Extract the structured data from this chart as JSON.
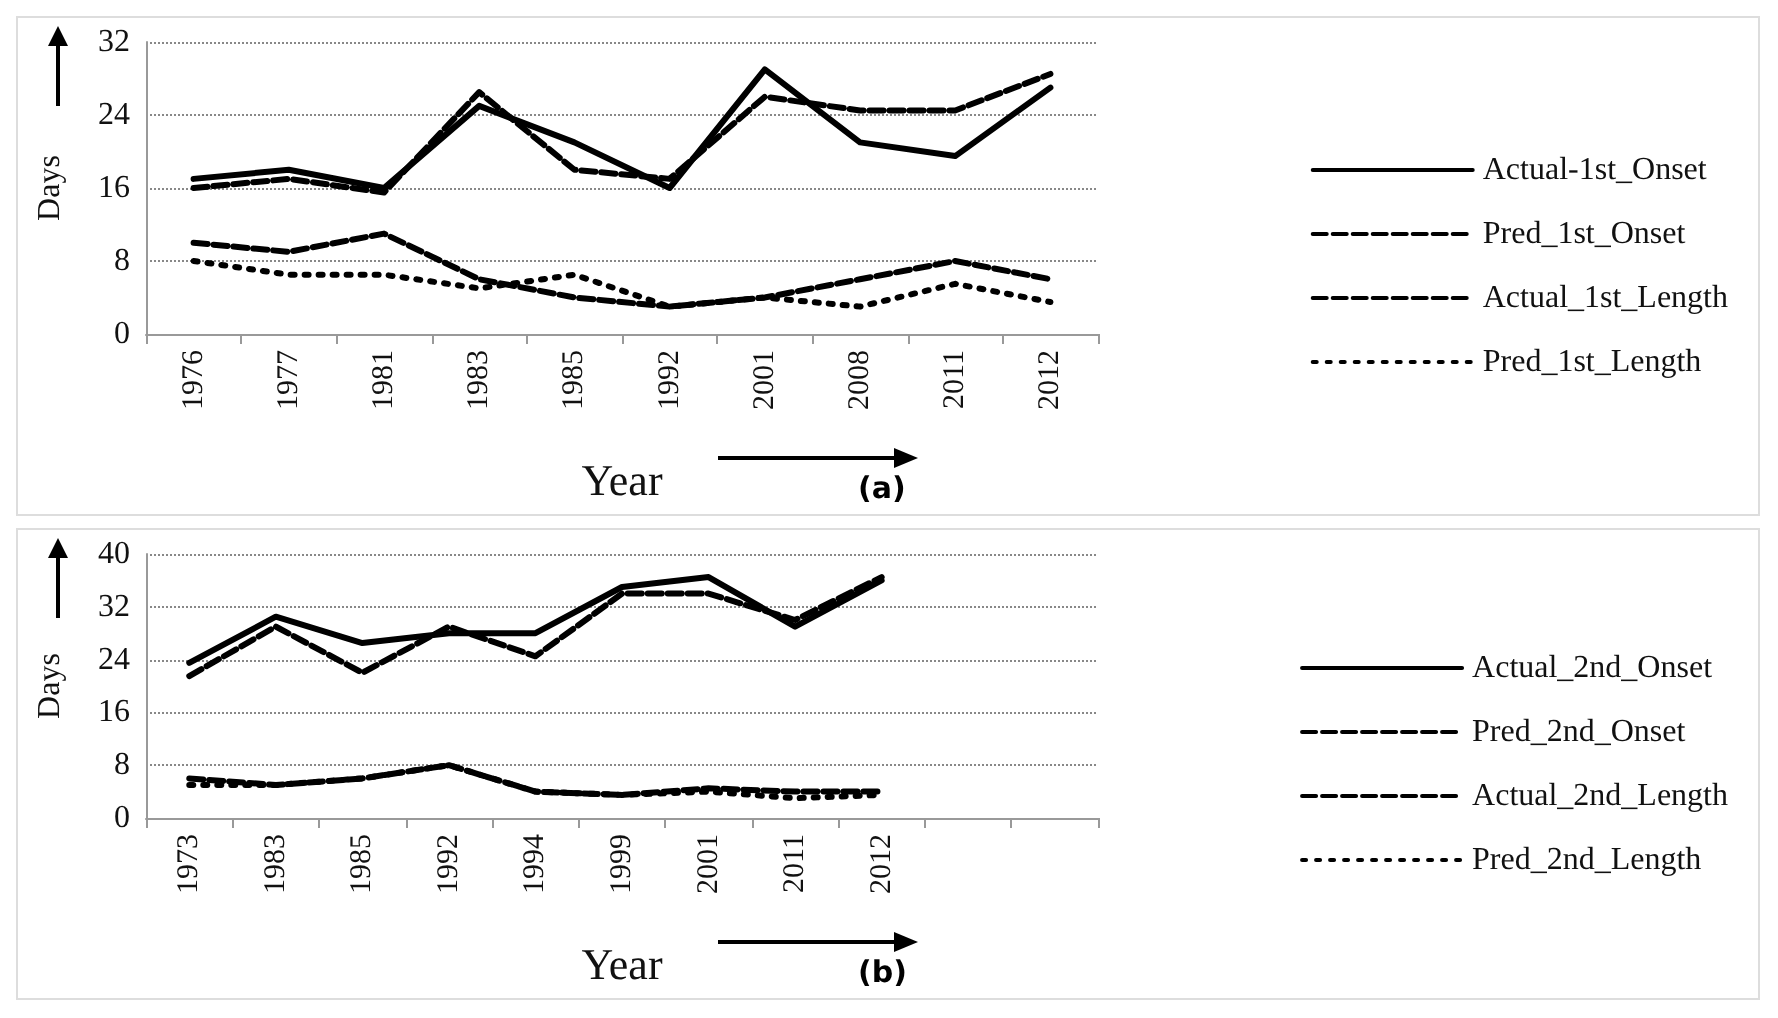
{
  "chart_data": [
    {
      "type": "line",
      "xlabel": "Year",
      "ylabel": "Days",
      "categories": [
        "1976",
        "1977",
        "1981",
        "1983",
        "1985",
        "1992",
        "2001",
        "2008",
        "2011",
        "2012"
      ],
      "ylim": [
        0,
        32
      ],
      "yticks": [
        0,
        8,
        16,
        24,
        32
      ],
      "grid": "y",
      "legend": "right",
      "marker": "none",
      "annotations": [
        "(a)"
      ],
      "series": [
        {
          "name": "Actual-1st_Onset",
          "color": "#000000",
          "line_style": "solid",
          "values": [
            17,
            18,
            16,
            25,
            21,
            16,
            29,
            21,
            19.5,
            27
          ]
        },
        {
          "name": "Pred_1st_Onset",
          "color": "#000000",
          "line_style": "dashed",
          "values": [
            16,
            17,
            15.5,
            26.5,
            18,
            17,
            26,
            24.5,
            24.5,
            28.5
          ]
        },
        {
          "name": "Actual_1st_Length",
          "color": "#000000",
          "line_style": "dashed",
          "values": [
            10,
            9,
            11,
            6,
            4,
            3,
            4,
            6,
            8,
            6
          ]
        },
        {
          "name": "Pred_1st_Length",
          "color": "#000000",
          "line_style": "dotted",
          "values": [
            8,
            6.5,
            6.5,
            5,
            6.5,
            3,
            4,
            3,
            5.5,
            3.5
          ]
        }
      ]
    },
    {
      "type": "line",
      "xlabel": "Year",
      "ylabel": "Days",
      "categories": [
        "1973",
        "1983",
        "1985",
        "1992",
        "1994",
        "1999",
        "2001",
        "2011",
        "2012",
        null,
        null
      ],
      "ylim": [
        0,
        40
      ],
      "yticks": [
        0,
        8,
        16,
        24,
        32,
        40
      ],
      "grid": "y",
      "legend": "right",
      "marker": "none",
      "annotations": [
        "(b)"
      ],
      "series": [
        {
          "name": "Actual_2nd_Onset",
          "color": "#000000",
          "line_style": "solid",
          "values": [
            23.5,
            30.5,
            26.5,
            28,
            28,
            35,
            36.5,
            29,
            36,
            null,
            null
          ]
        },
        {
          "name": "Pred_2nd_Onset",
          "color": "#000000",
          "line_style": "dashed",
          "values": [
            21.5,
            29,
            22,
            29,
            24.5,
            34,
            34,
            30,
            36.5,
            null,
            null
          ]
        },
        {
          "name": "Actual_2nd_Length",
          "color": "#000000",
          "line_style": "dashed",
          "values": [
            6,
            5,
            6,
            8,
            4,
            3.5,
            4.5,
            4,
            4,
            null,
            null
          ]
        },
        {
          "name": "Pred_2nd_Length",
          "color": "#000000",
          "line_style": "dotted",
          "values": [
            5,
            5,
            6,
            8,
            4,
            3.5,
            4,
            3,
            3.5,
            null,
            null
          ]
        }
      ]
    }
  ]
}
